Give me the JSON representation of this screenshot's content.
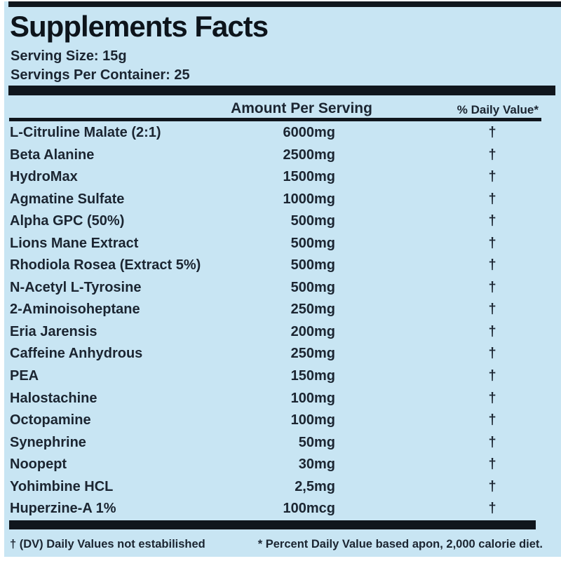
{
  "colors": {
    "background": "#c8e5f3",
    "text": "#1b2531",
    "bar": "#10161d"
  },
  "header": {
    "title": "Supplements Facts",
    "serving_size": "Serving Size: 15g",
    "servings_per_container": "Servings Per Container: 25"
  },
  "table": {
    "columns": {
      "amount": "Amount Per Serving",
      "daily_value": "% Daily Value*"
    },
    "rows": [
      {
        "name": "L-Citruline Malate (2:1)",
        "amount": "6000mg",
        "dv": "†"
      },
      {
        "name": "Beta Alanine",
        "amount": "2500mg",
        "dv": "†"
      },
      {
        "name": "HydroMax",
        "amount": "1500mg",
        "dv": "†"
      },
      {
        "name": "Agmatine Sulfate",
        "amount": "1000mg",
        "dv": "†"
      },
      {
        "name": "Alpha GPC (50%)",
        "amount": "500mg",
        "dv": "†"
      },
      {
        "name": "Lions Mane Extract",
        "amount": "500mg",
        "dv": "†"
      },
      {
        "name": "Rhodiola Rosea (Extract 5%)",
        "amount": "500mg",
        "dv": "†"
      },
      {
        "name": "N-Acetyl L-Tyrosine",
        "amount": "500mg",
        "dv": "†"
      },
      {
        "name": "2-Aminoisoheptane",
        "amount": "250mg",
        "dv": "†"
      },
      {
        "name": "Eria Jarensis",
        "amount": "200mg",
        "dv": "†"
      },
      {
        "name": "Caffeine Anhydrous",
        "amount": "250mg",
        "dv": "†"
      },
      {
        "name": "PEA",
        "amount": "150mg",
        "dv": "†"
      },
      {
        "name": "Halostachine",
        "amount": "100mg",
        "dv": "†"
      },
      {
        "name": "Octopamine",
        "amount": "100mg",
        "dv": "†"
      },
      {
        "name": "Synephrine",
        "amount": "50mg",
        "dv": "†"
      },
      {
        "name": "Noopept",
        "amount": "30mg",
        "dv": "†"
      },
      {
        "name": "Yohimbine HCL",
        "amount": "2,5mg",
        "dv": "†"
      },
      {
        "name": "Huperzine-A 1%",
        "amount": "100mcg",
        "dv": "†"
      }
    ]
  },
  "footnotes": {
    "left": "† (DV) Daily Values not estabilished",
    "right": "* Percent Daily Value based apon, 2,000 calorie diet."
  }
}
